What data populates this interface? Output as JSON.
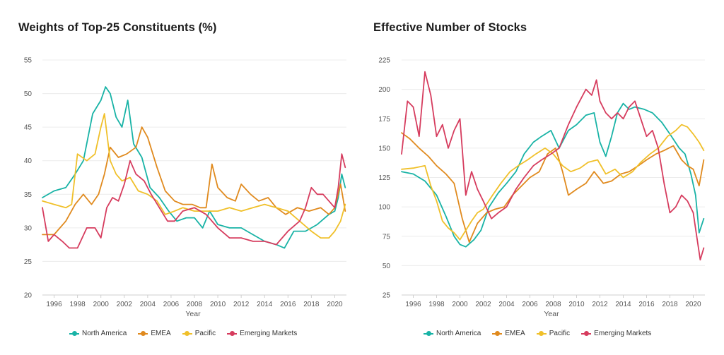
{
  "chart_data": [
    {
      "type": "line",
      "title": "Weights of Top-25 Constituents (%)",
      "xlabel": "Year",
      "ylabel": "",
      "xlim": [
        1995.0,
        2021.0
      ],
      "ylim": [
        20,
        55
      ],
      "yticks": [
        20,
        25,
        30,
        35,
        40,
        45,
        50,
        55
      ],
      "xticks": [
        1996,
        1998,
        2000,
        2002,
        2004,
        2006,
        2008,
        2010,
        2012,
        2014,
        2016,
        2018,
        2020
      ],
      "legend": "bottom",
      "series": [
        {
          "name": "North America",
          "color": "#19b3a6",
          "x": [
            1995.0,
            1996.0,
            1997.0,
            1997.8,
            1998.5,
            1999.3,
            2000.0,
            2000.4,
            2000.8,
            2001.3,
            2001.8,
            2002.3,
            2002.8,
            2003.5,
            2004.2,
            2005.0,
            2005.8,
            2006.5,
            2007.3,
            2008.0,
            2008.7,
            2009.3,
            2010.0,
            2011.0,
            2012.0,
            2013.0,
            2014.0,
            2015.0,
            2015.7,
            2016.5,
            2017.5,
            2018.5,
            2019.5,
            2020.0,
            2020.3,
            2020.6,
            2020.9
          ],
          "y": [
            34.5,
            35.5,
            36.0,
            38.0,
            40.0,
            47.0,
            49.0,
            51.0,
            50.0,
            46.5,
            45.0,
            49.0,
            42.5,
            40.5,
            36.0,
            34.5,
            32.5,
            31.0,
            31.5,
            31.5,
            30.0,
            32.5,
            30.5,
            30.0,
            30.0,
            29.0,
            28.0,
            27.5,
            27.0,
            29.5,
            29.5,
            30.5,
            32.0,
            32.5,
            34.5,
            38.0,
            36.0
          ]
        },
        {
          "name": "EMEA",
          "color": "#e08a1e",
          "x": [
            1995.0,
            1996.0,
            1997.0,
            1997.8,
            1998.5,
            1999.2,
            1999.8,
            2000.3,
            2000.8,
            2001.5,
            2002.2,
            2003.0,
            2003.5,
            2004.0,
            2004.8,
            2005.5,
            2006.3,
            2007.0,
            2007.8,
            2008.5,
            2009.0,
            2009.5,
            2010.0,
            2010.8,
            2011.5,
            2012.0,
            2012.8,
            2013.5,
            2014.3,
            2015.0,
            2015.8,
            2016.8,
            2017.8,
            2018.8,
            2019.5,
            2020.0,
            2020.5,
            2020.9
          ],
          "y": [
            29.0,
            29.0,
            31.0,
            33.5,
            35.0,
            33.5,
            35.0,
            38.0,
            42.0,
            40.5,
            41.0,
            42.0,
            45.0,
            43.5,
            39.0,
            35.5,
            34.0,
            33.5,
            33.5,
            33.0,
            33.0,
            39.5,
            36.0,
            34.5,
            34.0,
            36.5,
            35.0,
            34.0,
            34.5,
            33.0,
            32.0,
            33.0,
            32.5,
            33.0,
            32.0,
            33.0,
            36.5,
            32.5
          ]
        },
        {
          "name": "Pacific",
          "color": "#f0c02a",
          "x": [
            1995.0,
            1996.0,
            1997.0,
            1997.5,
            1998.0,
            1998.8,
            1999.5,
            2000.0,
            2000.3,
            2000.8,
            2001.3,
            2001.8,
            2002.5,
            2003.2,
            2004.0,
            2004.8,
            2005.5,
            2006.3,
            2007.0,
            2008.0,
            2009.0,
            2010.0,
            2011.0,
            2012.0,
            2013.0,
            2014.0,
            2015.0,
            2016.0,
            2017.0,
            2018.0,
            2018.8,
            2019.5,
            2020.0,
            2020.5,
            2020.9
          ],
          "y": [
            34.0,
            33.5,
            33.0,
            33.5,
            41.0,
            40.0,
            41.0,
            45.0,
            47.0,
            40.0,
            38.0,
            37.0,
            37.5,
            35.5,
            35.0,
            34.0,
            32.0,
            32.5,
            33.0,
            32.5,
            32.5,
            32.5,
            33.0,
            32.5,
            33.0,
            33.5,
            33.0,
            32.5,
            31.0,
            29.5,
            28.5,
            28.5,
            29.5,
            31.0,
            33.5
          ]
        },
        {
          "name": "Emerging Markets",
          "color": "#d63c5e",
          "x": [
            1995.0,
            1995.5,
            1996.0,
            1996.7,
            1997.3,
            1998.0,
            1998.8,
            1999.5,
            2000.0,
            2000.5,
            2001.0,
            2001.5,
            2002.0,
            2002.5,
            2003.0,
            2003.7,
            2004.3,
            2005.0,
            2005.7,
            2006.3,
            2007.0,
            2008.0,
            2009.0,
            2010.0,
            2011.0,
            2012.0,
            2013.0,
            2014.0,
            2015.0,
            2016.0,
            2017.0,
            2017.5,
            2018.0,
            2018.5,
            2019.0,
            2019.5,
            2020.0,
            2020.3,
            2020.6,
            2020.9
          ],
          "y": [
            33.0,
            28.0,
            29.0,
            28.0,
            27.0,
            27.0,
            30.0,
            30.0,
            28.5,
            33.0,
            34.5,
            34.0,
            36.5,
            40.0,
            38.0,
            37.0,
            35.0,
            33.0,
            31.0,
            31.0,
            32.5,
            33.0,
            32.0,
            30.0,
            28.5,
            28.5,
            28.0,
            28.0,
            27.5,
            29.5,
            31.0,
            33.0,
            36.0,
            35.0,
            35.0,
            34.0,
            33.0,
            36.0,
            41.0,
            39.0
          ]
        }
      ]
    },
    {
      "type": "line",
      "title": "Effective Number of Stocks",
      "xlabel": "Year",
      "ylabel": "",
      "xlim": [
        1995.0,
        2021.0
      ],
      "ylim": [
        25,
        225
      ],
      "yticks": [
        25,
        50,
        75,
        100,
        125,
        150,
        175,
        200,
        225
      ],
      "xticks": [
        1996,
        1998,
        2000,
        2002,
        2004,
        2006,
        2008,
        2010,
        2012,
        2014,
        2016,
        2018,
        2020
      ],
      "legend": "bottom",
      "series": [
        {
          "name": "North America",
          "color": "#19b3a6",
          "x": [
            1995.0,
            1996.0,
            1997.0,
            1998.0,
            1998.8,
            1999.5,
            2000.0,
            2000.5,
            2001.2,
            2001.8,
            2002.5,
            2003.3,
            2004.0,
            2004.8,
            2005.5,
            2006.3,
            2007.0,
            2007.8,
            2008.5,
            2009.3,
            2010.0,
            2010.8,
            2011.5,
            2012.0,
            2012.5,
            2013.0,
            2013.5,
            2014.0,
            2014.5,
            2015.0,
            2015.8,
            2016.5,
            2017.3,
            2018.0,
            2018.8,
            2019.3,
            2019.8,
            2020.2,
            2020.5,
            2020.9
          ],
          "y": [
            130.0,
            128.0,
            122.0,
            110.0,
            92.0,
            75.0,
            68.0,
            66.0,
            72.0,
            80.0,
            100.0,
            112.0,
            120.0,
            130.0,
            145.0,
            155.0,
            160.0,
            165.0,
            150.0,
            165.0,
            170.0,
            178.0,
            180.0,
            155.0,
            143.0,
            160.0,
            180.0,
            188.0,
            183.0,
            185.0,
            183.0,
            180.0,
            172.0,
            162.0,
            150.0,
            145.0,
            128.0,
            110.0,
            78.0,
            90.0
          ]
        },
        {
          "name": "EMEA",
          "color": "#e08a1e",
          "x": [
            1995.0,
            1995.7,
            1996.5,
            1997.3,
            1998.0,
            1998.8,
            1999.5,
            2000.2,
            2000.8,
            2001.5,
            2002.3,
            2003.0,
            2003.8,
            2004.5,
            2005.3,
            2006.0,
            2006.8,
            2007.5,
            2008.2,
            2008.8,
            2009.3,
            2010.0,
            2010.8,
            2011.5,
            2012.3,
            2013.0,
            2013.8,
            2014.5,
            2015.3,
            2016.0,
            2016.8,
            2017.5,
            2018.3,
            2019.0,
            2019.5,
            2020.0,
            2020.5,
            2020.9
          ],
          "y": [
            163.0,
            158.0,
            150.0,
            143.0,
            135.0,
            128.0,
            120.0,
            90.0,
            70.0,
            86.0,
            95.0,
            98.0,
            100.0,
            110.0,
            118.0,
            125.0,
            130.0,
            145.0,
            150.0,
            130.0,
            110.0,
            115.0,
            120.0,
            130.0,
            120.0,
            122.0,
            128.0,
            130.0,
            135.0,
            140.0,
            145.0,
            148.0,
            152.0,
            140.0,
            135.0,
            132.0,
            118.0,
            140.0
          ]
        },
        {
          "name": "Pacific",
          "color": "#f0c02a",
          "x": [
            1995.0,
            1996.0,
            1997.0,
            1997.5,
            1998.0,
            1998.5,
            1999.0,
            1999.5,
            2000.0,
            2000.5,
            2001.0,
            2001.5,
            2002.0,
            2002.8,
            2003.5,
            2004.3,
            2005.0,
            2005.8,
            2006.5,
            2007.3,
            2008.0,
            2008.8,
            2009.5,
            2010.3,
            2011.0,
            2011.8,
            2012.5,
            2013.3,
            2014.0,
            2014.8,
            2015.5,
            2016.3,
            2017.0,
            2017.8,
            2018.5,
            2019.0,
            2019.5,
            2020.0,
            2020.5,
            2020.9
          ],
          "y": [
            132.0,
            133.0,
            135.0,
            118.0,
            105.0,
            88.0,
            82.0,
            78.0,
            72.0,
            80.0,
            88.0,
            95.0,
            98.0,
            110.0,
            120.0,
            130.0,
            135.0,
            140.0,
            145.0,
            150.0,
            145.0,
            135.0,
            130.0,
            133.0,
            138.0,
            140.0,
            128.0,
            132.0,
            125.0,
            130.0,
            138.0,
            145.0,
            150.0,
            160.0,
            165.0,
            170.0,
            168.0,
            162.0,
            155.0,
            148.0
          ]
        },
        {
          "name": "Emerging Markets",
          "color": "#d63c5e",
          "x": [
            1995.0,
            1995.5,
            1996.0,
            1996.5,
            1997.0,
            1997.5,
            1998.0,
            1998.5,
            1999.0,
            1999.5,
            2000.0,
            2000.5,
            2001.0,
            2001.5,
            2002.0,
            2002.7,
            2003.3,
            2004.0,
            2004.8,
            2005.5,
            2006.3,
            2007.0,
            2007.8,
            2008.5,
            2009.3,
            2010.0,
            2010.8,
            2011.3,
            2011.7,
            2012.0,
            2012.5,
            2013.0,
            2013.5,
            2014.0,
            2014.5,
            2015.0,
            2015.5,
            2016.0,
            2016.5,
            2017.0,
            2017.5,
            2018.0,
            2018.5,
            2019.0,
            2019.5,
            2020.0,
            2020.3,
            2020.6,
            2020.9
          ],
          "y": [
            145.0,
            190.0,
            185.0,
            160.0,
            215.0,
            195.0,
            160.0,
            170.0,
            150.0,
            165.0,
            175.0,
            110.0,
            130.0,
            115.0,
            105.0,
            90.0,
            95.0,
            100.0,
            115.0,
            125.0,
            135.0,
            140.0,
            145.0,
            150.0,
            170.0,
            185.0,
            200.0,
            195.0,
            208.0,
            190.0,
            180.0,
            175.0,
            180.0,
            175.0,
            185.0,
            190.0,
            175.0,
            160.0,
            165.0,
            150.0,
            120.0,
            95.0,
            100.0,
            110.0,
            105.0,
            95.0,
            75.0,
            55.0,
            65.0
          ]
        }
      ]
    }
  ]
}
